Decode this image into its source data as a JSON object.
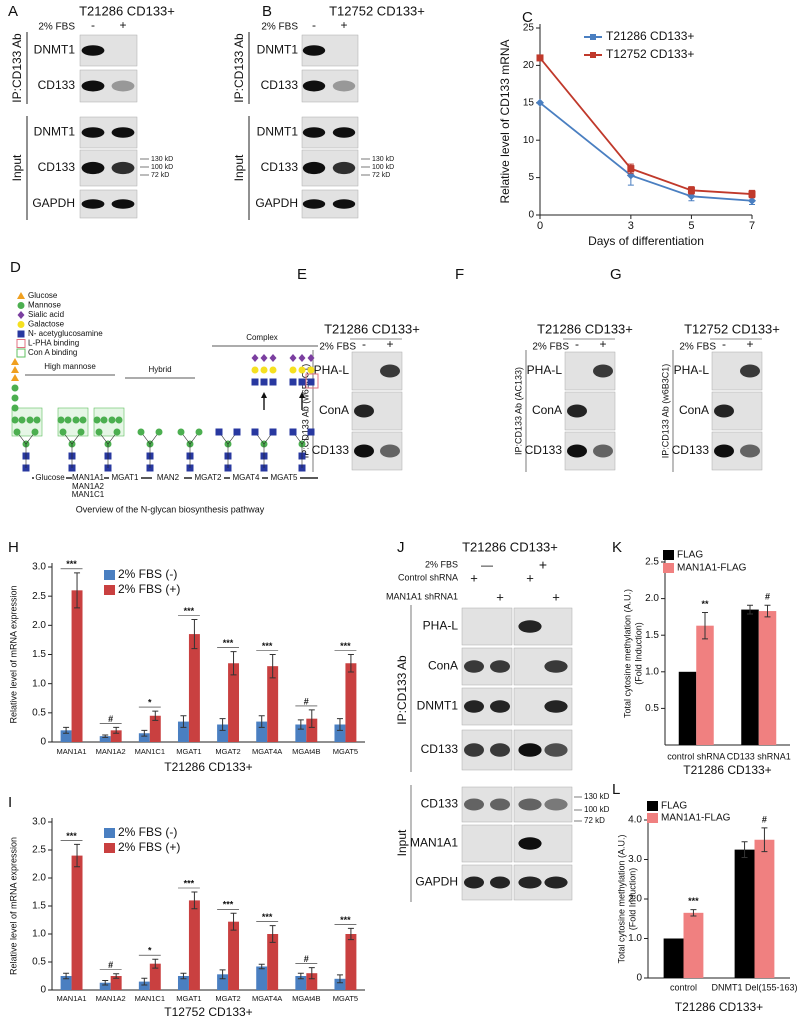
{
  "panels": {
    "A": {
      "letter": "A",
      "title": "T21286 CD133+",
      "fbs": "2% FBS",
      "lanes": [
        "-",
        "+"
      ],
      "ip_label": "IP:CD133 Ab",
      "input_label": "Input",
      "ip_rows": [
        "DNMT1",
        "CD133"
      ],
      "input_rows": [
        "DNMT1",
        "CD133",
        "GAPDH"
      ],
      "markers": [
        "130 kD",
        "100 kD",
        "72 kD"
      ]
    },
    "B": {
      "letter": "B",
      "title": "T12752 CD133+",
      "fbs": "2% FBS",
      "lanes": [
        "-",
        "+"
      ],
      "ip_label": "IP:CD133 Ab",
      "input_label": "Input",
      "ip_rows": [
        "DNMT1",
        "CD133"
      ],
      "input_rows": [
        "DNMT1",
        "CD133",
        "GAPDH"
      ],
      "markers": [
        "130 kD",
        "100 kD",
        "72 kD"
      ]
    },
    "D": {
      "letter": "D",
      "legend": [
        "Glucose",
        "Mannose",
        "Sialic acid",
        "Galactose",
        "N- acetyglucosamine",
        "L-PHA binding",
        "Con A binding"
      ],
      "groups": [
        "High mannose",
        "Hybrid",
        "Complex"
      ],
      "enzymes": [
        "Glucose",
        "MAN1A1",
        "MAN1A2",
        "MAN1C1",
        "MGAT1",
        "MAN2",
        "MGAT2",
        "MGAT4",
        "MGAT5"
      ],
      "caption": "Overview of the N-glycan biosynthesis pathway"
    },
    "E": {
      "letter": "E",
      "title": "T21286 CD133+",
      "fbs": "2% FBS",
      "lanes": [
        "-",
        "+"
      ],
      "ip_label": "IP:CD133 Ab (w6B3C1)",
      "rows": [
        "PHA-L",
        "ConA",
        "CD133"
      ]
    },
    "F": {
      "letter": "F",
      "title": "T21286 CD133+",
      "fbs": "2% FBS",
      "lanes": [
        "-",
        "+"
      ],
      "ip_label": "IP:CD133 Ab (AC133)",
      "rows": [
        "PHA-L",
        "ConA",
        "CD133"
      ]
    },
    "G": {
      "letter": "G",
      "title": "T12752 CD133+",
      "fbs": "2% FBS",
      "lanes": [
        "-",
        "+"
      ],
      "ip_label": "IP:CD133 Ab (w6B3C1)",
      "rows": [
        "PHA-L",
        "ConA",
        "CD133"
      ]
    },
    "J": {
      "letter": "J",
      "title": "T21286 CD133+",
      "fbs": "2% FBS",
      "fbs_marks": [
        "—",
        "+"
      ],
      "control": "Control shRNA",
      "control_marks": [
        "+",
        "+"
      ],
      "knockdown": "MAN1A1 shRNA1",
      "knockdown_marks": [
        "+",
        "+"
      ],
      "ip_label": "IP:CD133 Ab",
      "input_label": "Input",
      "ip_rows": [
        "PHA-L",
        "ConA",
        "DNMT1",
        "CD133"
      ],
      "input_rows": [
        "CD133",
        "MAN1A1",
        "GAPDH"
      ],
      "markers": [
        "130 kD",
        "100 kD",
        "72 kD"
      ]
    }
  },
  "chart_data": [
    {
      "type": "line",
      "letter": "C",
      "x_label": "Days of differentiation",
      "y_label": [
        "Relative level of CD133 mRNA"
      ],
      "x": [
        0,
        3,
        5,
        7
      ],
      "xlim": [
        0,
        7
      ],
      "xticks": [
        0,
        3,
        5,
        7
      ],
      "ylim": [
        0,
        25
      ],
      "yticks": [
        0,
        5,
        10,
        15,
        20,
        25
      ],
      "series": [
        {
          "name": "T21286 CD133+",
          "color": "#4a7fc1",
          "values": [
            15,
            5.3,
            2.5,
            1.9
          ],
          "errors": [
            0,
            1.3,
            0.6,
            0.5
          ]
        },
        {
          "name": "T12752 CD133+",
          "color": "#c0392b",
          "values": [
            21,
            6.2,
            3.3,
            2.8
          ],
          "errors": [
            0,
            0.6,
            0.5,
            0.5
          ]
        }
      ]
    },
    {
      "type": "bar",
      "letter": "H",
      "x_label": "T21286 CD133+",
      "y_label": [
        "Relative level of mRNA expression"
      ],
      "categories": [
        "MAN1A1",
        "MAN1A2",
        "MAN1C1",
        "MGAT1",
        "MGAT2",
        "MGAT4A",
        "MGAt4B",
        "MGAT5"
      ],
      "ylim": [
        0,
        3
      ],
      "yticks": [
        0,
        0.5,
        {
          "value": 1,
          "label": "1.0"
        },
        1.5,
        {
          "value": 2,
          "label": "2.0"
        },
        2.5,
        {
          "value": 3,
          "label": "3.0"
        }
      ],
      "sig": [
        "***",
        "#",
        "*",
        "***",
        "***",
        "***",
        "#",
        "***"
      ],
      "series": [
        {
          "name": "2% FBS (-)",
          "color": "#4a7fc1",
          "values": [
            0.2,
            0.1,
            0.15,
            0.35,
            0.3,
            0.35,
            0.3,
            0.3
          ],
          "errors": [
            0.05,
            0.02,
            0.05,
            0.1,
            0.1,
            0.1,
            0.08,
            0.1
          ]
        },
        {
          "name": "2% FBS (+)",
          "color": "#c94040",
          "values": [
            2.6,
            0.2,
            0.45,
            1.85,
            1.35,
            1.3,
            0.4,
            1.35
          ],
          "errors": [
            0.3,
            0.05,
            0.08,
            0.25,
            0.2,
            0.2,
            0.15,
            0.15
          ]
        }
      ]
    },
    {
      "type": "bar",
      "letter": "I",
      "x_label": "T12752 CD133+",
      "y_label": [
        "Relative level of mRNA expression"
      ],
      "categories": [
        "MAN1A1",
        "MAN1A2",
        "MAN1C1",
        "MGAT1",
        "MGAT2",
        "MGAT4A",
        "MGAt4B",
        "MGAT5"
      ],
      "ylim": [
        0,
        3
      ],
      "yticks": [
        0,
        0.5,
        {
          "value": 1,
          "label": "1.0"
        },
        1.5,
        {
          "value": 2,
          "label": "2.0"
        },
        2.5,
        {
          "value": 3,
          "label": "3.0"
        }
      ],
      "sig": [
        "***",
        "#",
        "*",
        "***",
        "***",
        "***",
        "#",
        "***"
      ],
      "series": [
        {
          "name": "2% FBS (-)",
          "color": "#4a7fc1",
          "values": [
            0.25,
            0.13,
            0.15,
            0.25,
            0.28,
            0.42,
            0.25,
            0.2
          ],
          "errors": [
            0.05,
            0.04,
            0.06,
            0.05,
            0.08,
            0.04,
            0.05,
            0.07
          ]
        },
        {
          "name": "2% FBS (+)",
          "color": "#c94040",
          "values": [
            2.4,
            0.25,
            0.47,
            1.6,
            1.22,
            1.0,
            0.3,
            1.0
          ],
          "errors": [
            0.2,
            0.04,
            0.08,
            0.15,
            0.15,
            0.15,
            0.1,
            0.1
          ]
        }
      ]
    },
    {
      "type": "bar",
      "letter": "K",
      "x_label": "T21286 CD133+",
      "y_label": [
        "Total cytosine methylation (A.U.)",
        "(Fold Induction)"
      ],
      "categories": [
        "control shRNA",
        "CD133 shRNA1"
      ],
      "ylim": [
        0,
        2.5
      ],
      "yticks": [
        {
          "value": 0.5,
          "label": "0.5"
        },
        {
          "value": 1,
          "label": "1.0"
        },
        1.5,
        {
          "value": 2,
          "label": "2.0"
        },
        2.5
      ],
      "sig": [
        "**",
        "#"
      ],
      "series": [
        {
          "name": "FLAG",
          "color": "#000000",
          "values": [
            1.0,
            1.85
          ],
          "errors": [
            0,
            0.06
          ]
        },
        {
          "name": "MAN1A1-FLAG",
          "color": "#f08080",
          "values": [
            1.63,
            1.83
          ],
          "errors": [
            0.18,
            0.08
          ]
        }
      ]
    },
    {
      "type": "bar",
      "letter": "L",
      "x_label": "T21286 CD133+",
      "y_label": [
        "Total cytosine methylation (A.U.)",
        "(Fold Induction)"
      ],
      "categories": [
        "control",
        "DNMT1 Del(155-163)"
      ],
      "ylim": [
        0,
        4
      ],
      "yticks": [
        0,
        {
          "value": 1,
          "label": "1.0"
        },
        {
          "value": 2,
          "label": "2.0"
        },
        {
          "value": 3,
          "label": "3.0"
        },
        {
          "value": 4,
          "label": "4.0"
        }
      ],
      "sig": [
        "***",
        "#"
      ],
      "series": [
        {
          "name": "FLAG",
          "color": "#000000",
          "values": [
            1.0,
            3.25
          ],
          "errors": [
            0,
            0.2
          ]
        },
        {
          "name": "MAN1A1-FLAG",
          "color": "#f08080",
          "values": [
            1.65,
            3.5
          ],
          "errors": [
            0.08,
            0.3
          ]
        }
      ]
    }
  ]
}
